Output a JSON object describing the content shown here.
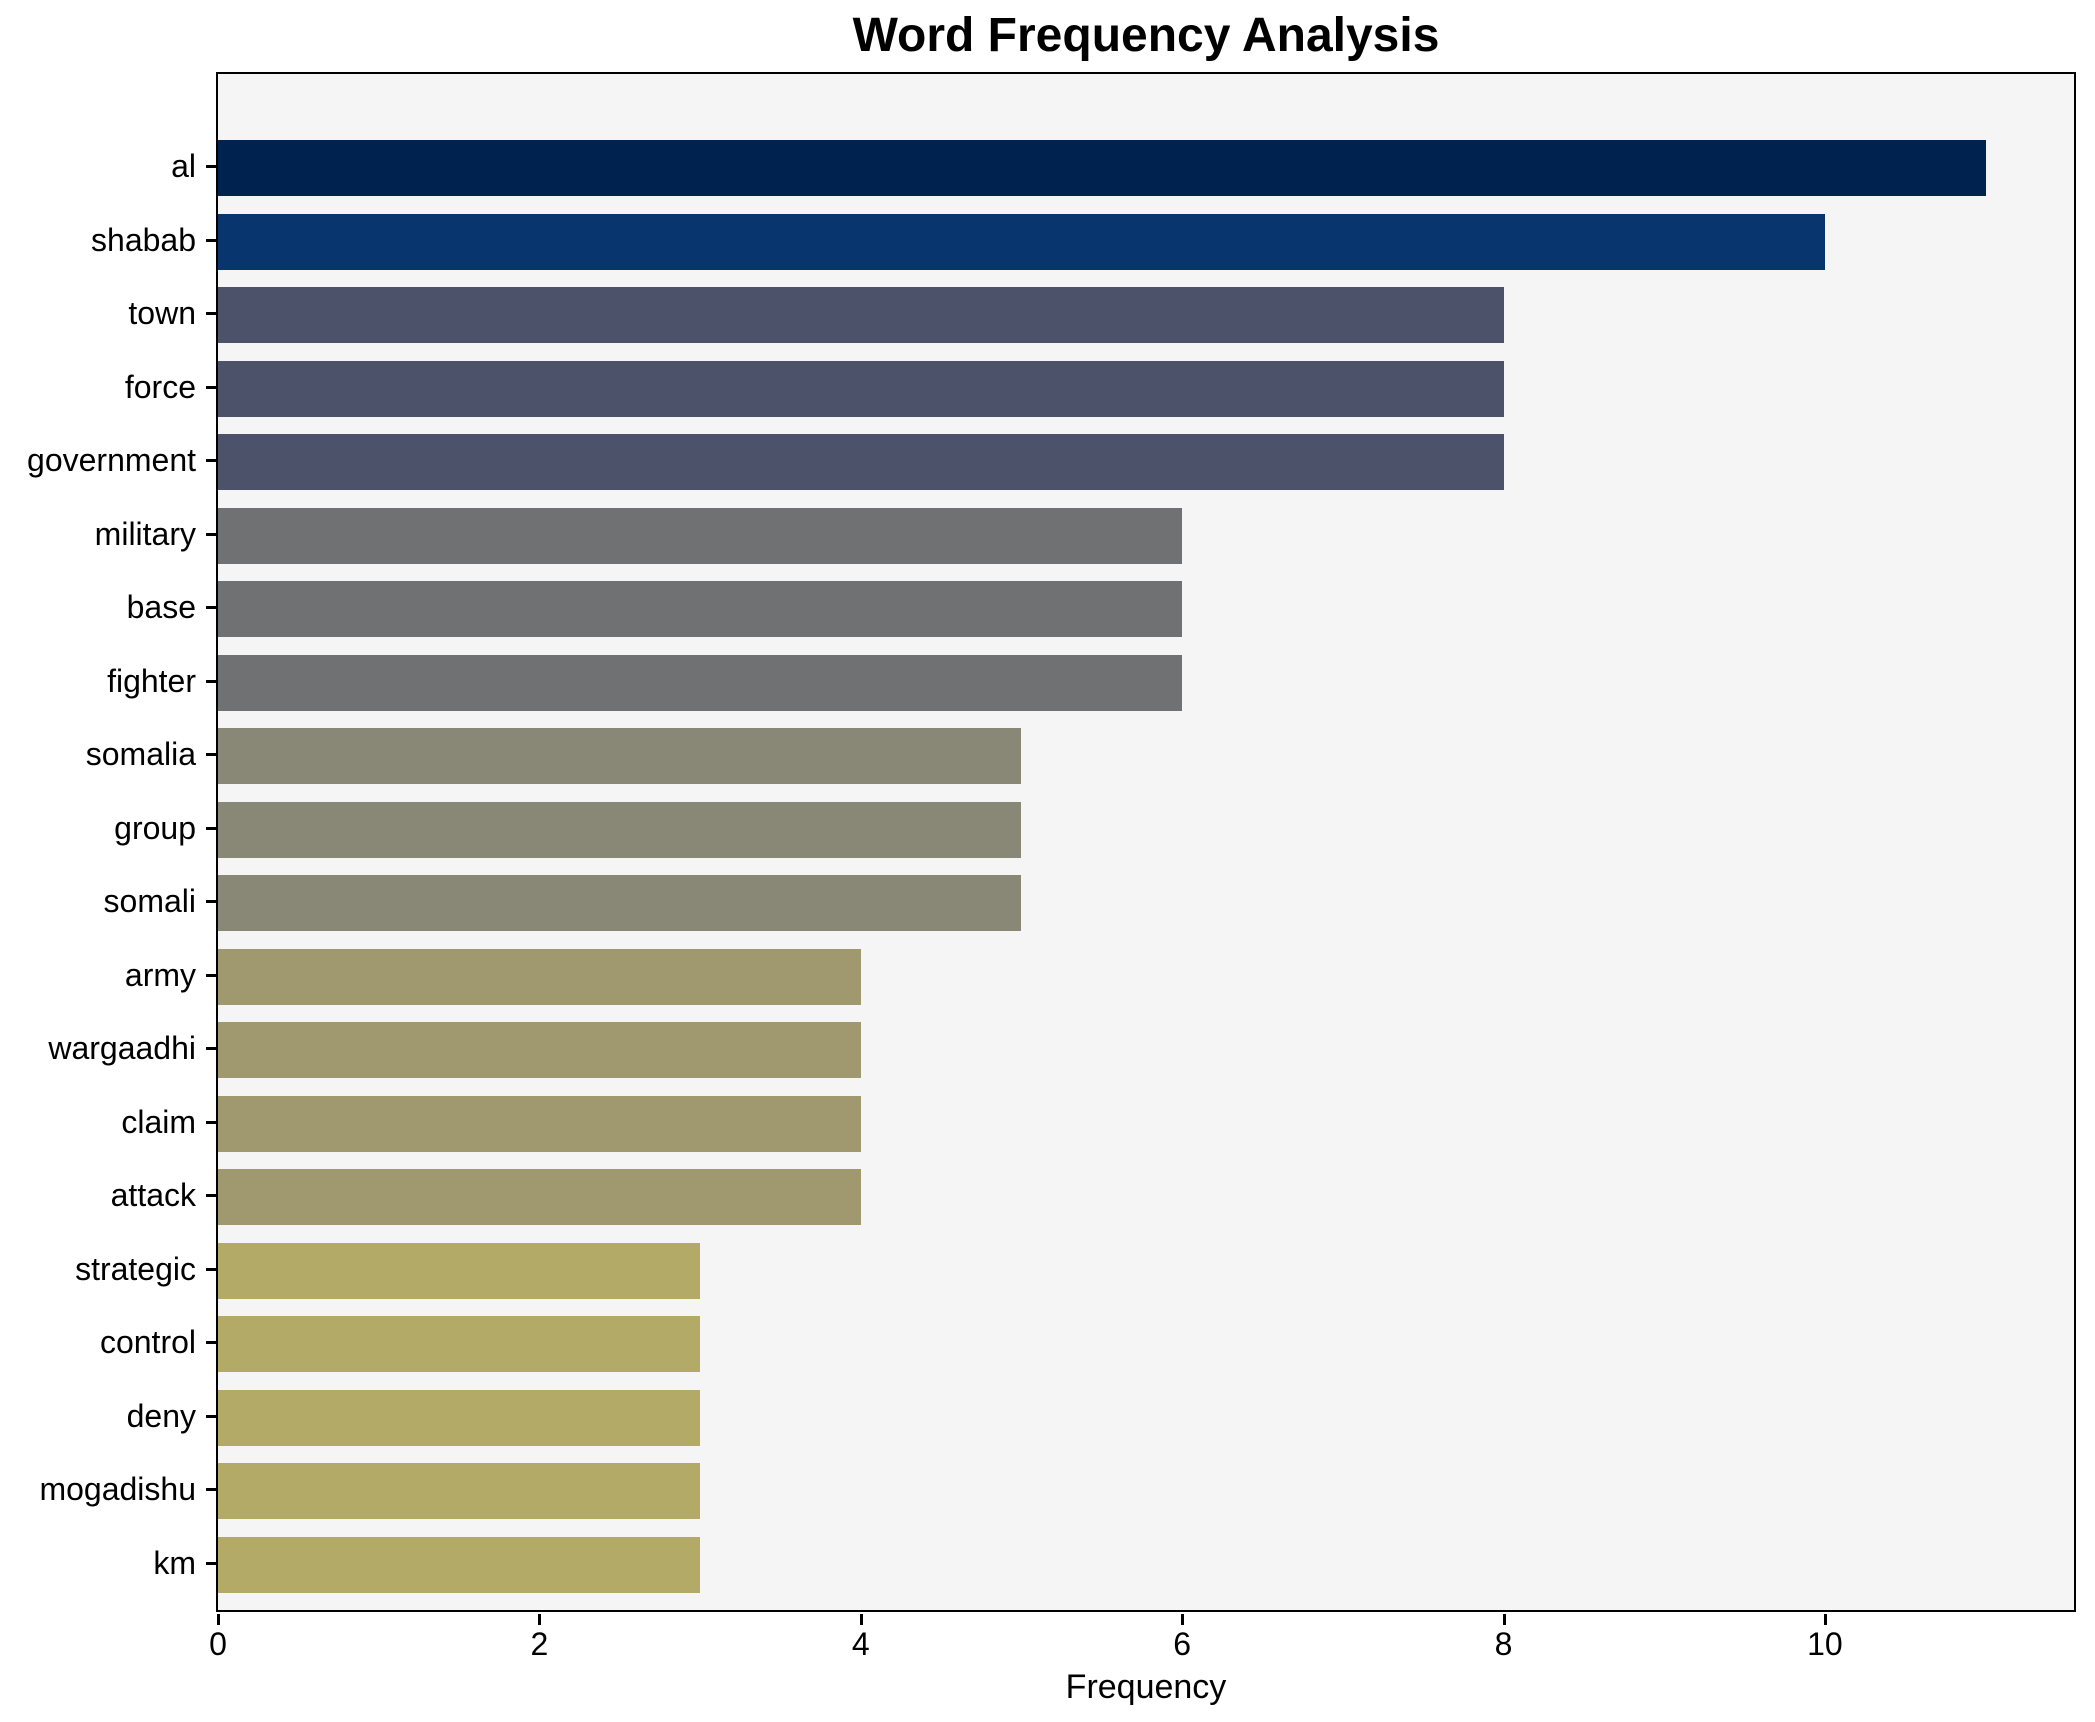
{
  "title": "Word Frequency Analysis",
  "chart_data": {
    "type": "bar",
    "orientation": "horizontal",
    "title": "Word Frequency Analysis",
    "xlabel": "Frequency",
    "ylabel": "",
    "categories": [
      "al",
      "shabab",
      "town",
      "force",
      "government",
      "military",
      "base",
      "fighter",
      "somalia",
      "group",
      "somali",
      "army",
      "wargaadhi",
      "claim",
      "attack",
      "strategic",
      "control",
      "deny",
      "mogadishu",
      "km"
    ],
    "values": [
      11,
      10,
      8,
      8,
      8,
      6,
      6,
      6,
      5,
      5,
      5,
      4,
      4,
      4,
      4,
      3,
      3,
      3,
      3,
      3
    ],
    "bar_colors": [
      "#00224e",
      "#08356e",
      "#4b5269",
      "#4b5269",
      "#4b5269",
      "#707173",
      "#707173",
      "#707173",
      "#898877",
      "#898877",
      "#898877",
      "#a0996f",
      "#a0996f",
      "#a0996f",
      "#a0996f",
      "#b4aa68",
      "#b4aa68",
      "#b4aa68",
      "#b4aa68",
      "#b4aa68"
    ],
    "xlim": [
      0,
      11.55
    ],
    "x_ticks": [
      0,
      2,
      4,
      6,
      8,
      10
    ],
    "grid": false,
    "legend": null,
    "plot_bg": "#f5f5f5",
    "fig_bg": "#ffffff",
    "spine_color": "#000000"
  }
}
